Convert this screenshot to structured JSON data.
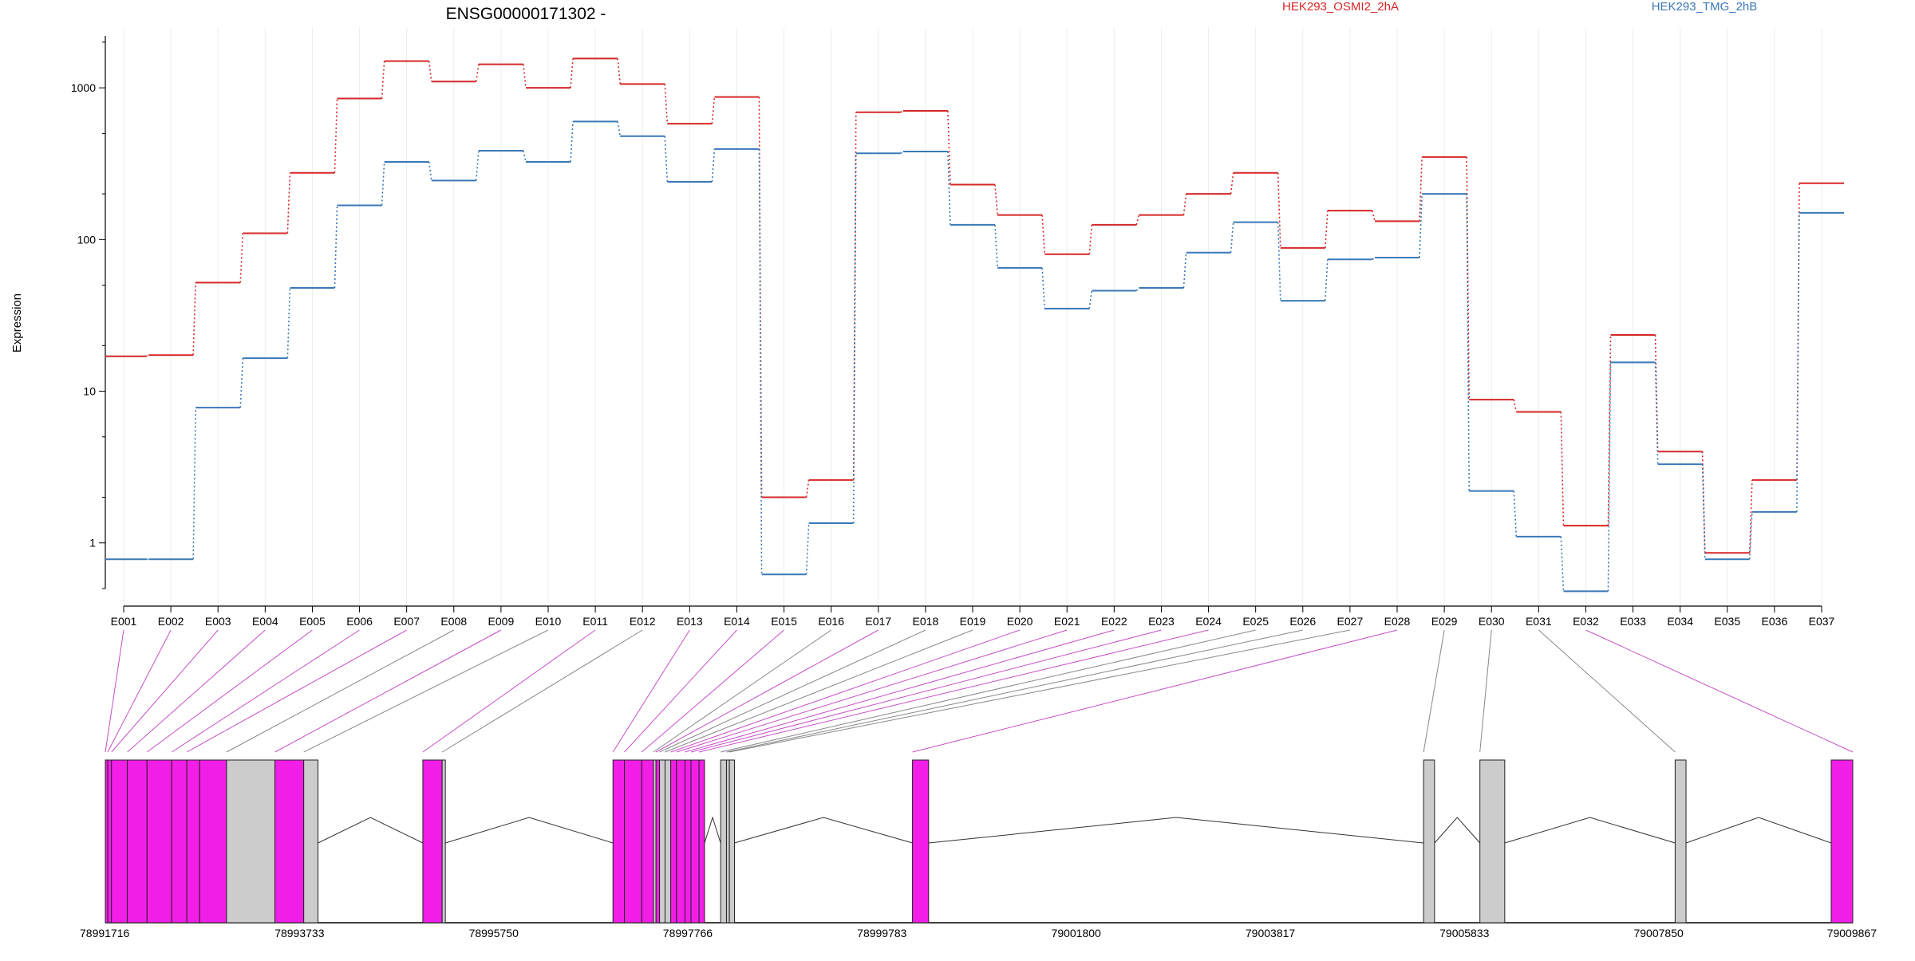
{
  "chart_data": {
    "type": "line",
    "title": "ENSG00000171302 -",
    "ylabel": "Expression",
    "xlabel": "",
    "y_scale": "log",
    "ylim": [
      0.5,
      2200
    ],
    "y_ticks": [
      1,
      10,
      100,
      1000
    ],
    "y_tick_labels": [
      "1",
      "10",
      "100",
      "1000"
    ],
    "grid": "vertical-light",
    "legend_placement": "top",
    "categories": [
      "E001",
      "E002",
      "E003",
      "E004",
      "E005",
      "E006",
      "E007",
      "E008",
      "E009",
      "E010",
      "E011",
      "E012",
      "E013",
      "E014",
      "E015",
      "E016",
      "E017",
      "E018",
      "E019",
      "E020",
      "E021",
      "E022",
      "E023",
      "E024",
      "E025",
      "E026",
      "E027",
      "E028",
      "E029",
      "E030",
      "E031",
      "E032",
      "E033",
      "E034",
      "E035",
      "E036",
      "E037"
    ],
    "series": [
      {
        "name": "HEK293_OSMI2_2hA",
        "color": "#d62728",
        "values": [
          17,
          17.3,
          52,
          110,
          275,
          850,
          1500,
          1100,
          1430,
          1000,
          1560,
          1060,
          580,
          870,
          2.0,
          2.6,
          690,
          705,
          230,
          145,
          80,
          125,
          145,
          200,
          275,
          88,
          155,
          132,
          350,
          8.8,
          7.3,
          1.3,
          23.5,
          4.0,
          0.86,
          2.6,
          235
        ]
      },
      {
        "name": "HEK293_TMG_2hB",
        "color": "#3a78b8",
        "values": [
          0.78,
          0.78,
          7.8,
          16.5,
          48,
          168,
          325,
          245,
          385,
          325,
          600,
          480,
          240,
          395,
          0.62,
          1.35,
          370,
          380,
          125,
          65,
          35,
          46,
          48,
          82,
          130,
          39.5,
          74,
          76,
          200,
          2.2,
          1.1,
          0.48,
          15.5,
          3.3,
          0.78,
          1.6,
          150
        ]
      }
    ],
    "gene_model": {
      "genomic_ticks": [
        78991716,
        78993733,
        78995750,
        78997766,
        78999783,
        79001800,
        79003817,
        79005833,
        79007850,
        79009867
      ],
      "genomic_tick_labels": [
        "78991716",
        "78993733",
        "78995750",
        "78997766",
        "78999783",
        "79001800",
        "79003817",
        "79005833",
        "79007850",
        "79009867"
      ],
      "range": [
        78991716,
        79009867
      ],
      "highlight_color": "#f21ee8",
      "plain_color": "#cccccc",
      "exons": [
        {
          "start": 78991716,
          "end": 78991741,
          "hl": true
        },
        {
          "start": 78991741,
          "end": 78991780,
          "hl": true
        },
        {
          "start": 78991780,
          "end": 78991945,
          "hl": true
        },
        {
          "start": 78991945,
          "end": 78992149,
          "hl": true
        },
        {
          "start": 78992149,
          "end": 78992406,
          "hl": true
        },
        {
          "start": 78992406,
          "end": 78992562,
          "hl": true
        },
        {
          "start": 78992562,
          "end": 78992696,
          "hl": true
        },
        {
          "start": 78992696,
          "end": 78992975,
          "hl": true
        },
        {
          "start": 78992975,
          "end": 78993478,
          "hl": false
        },
        {
          "start": 78993478,
          "end": 78993777,
          "hl": true
        },
        {
          "start": 78993777,
          "end": 78993925,
          "hl": false
        },
        {
          "start": 78995014,
          "end": 78995215,
          "hl": true
        },
        {
          "start": 78995215,
          "end": 78995248,
          "hl": false
        },
        {
          "start": 78996989,
          "end": 78997108,
          "hl": true
        },
        {
          "start": 78997108,
          "end": 78997288,
          "hl": true
        },
        {
          "start": 78997288,
          "end": 78997409,
          "hl": true
        },
        {
          "start": 78997409,
          "end": 78997436,
          "hl": false
        },
        {
          "start": 78997436,
          "end": 78997473,
          "hl": true
        },
        {
          "start": 78997473,
          "end": 78997530,
          "hl": false
        },
        {
          "start": 78997530,
          "end": 78997589,
          "hl": false
        },
        {
          "start": 78997589,
          "end": 78997649,
          "hl": true
        },
        {
          "start": 78997649,
          "end": 78997737,
          "hl": true
        },
        {
          "start": 78997737,
          "end": 78997800,
          "hl": true
        },
        {
          "start": 78997800,
          "end": 78997883,
          "hl": true
        },
        {
          "start": 78997883,
          "end": 78997940,
          "hl": true
        },
        {
          "start": 78998107,
          "end": 78998168,
          "hl": false
        },
        {
          "start": 78998168,
          "end": 78998198,
          "hl": false
        },
        {
          "start": 78998198,
          "end": 78998251,
          "hl": false
        },
        {
          "start": 79000100,
          "end": 79000268,
          "hl": true
        },
        {
          "start": 79005409,
          "end": 79005523,
          "hl": false
        },
        {
          "start": 79005994,
          "end": 79006252,
          "hl": false
        },
        {
          "start": 79008022,
          "end": 79008135,
          "hl": false
        },
        {
          "start": 79009643,
          "end": 79009867,
          "hl": true
        }
      ],
      "introns": [
        {
          "start": 78993925,
          "end": 78995014
        },
        {
          "start": 78995248,
          "end": 78996989
        },
        {
          "start": 78997940,
          "end": 78998107
        },
        {
          "start": 78998251,
          "end": 79000100
        },
        {
          "start": 79000268,
          "end": 79005409
        },
        {
          "start": 79005523,
          "end": 79005994
        },
        {
          "start": 79006252,
          "end": 79008022
        },
        {
          "start": 79008135,
          "end": 79009643
        }
      ],
      "connectors": [
        {
          "pos": 78991716,
          "hl": true
        },
        {
          "pos": 78991741,
          "hl": true
        },
        {
          "pos": 78991780,
          "hl": true
        },
        {
          "pos": 78991945,
          "hl": true
        },
        {
          "pos": 78992149,
          "hl": true
        },
        {
          "pos": 78992406,
          "hl": true
        },
        {
          "pos": 78992562,
          "hl": true
        },
        {
          "pos": 78992975,
          "hl": false
        },
        {
          "pos": 78993478,
          "hl": true
        },
        {
          "pos": 78993777,
          "hl": false
        },
        {
          "pos": 78995014,
          "hl": true
        },
        {
          "pos": 78995215,
          "hl": false
        },
        {
          "pos": 78996989,
          "hl": true
        },
        {
          "pos": 78997108,
          "hl": true
        },
        {
          "pos": 78997288,
          "hl": true
        },
        {
          "pos": 78997409,
          "hl": false
        },
        {
          "pos": 78997436,
          "hl": true
        },
        {
          "pos": 78997473,
          "hl": false
        },
        {
          "pos": 78997530,
          "hl": false
        },
        {
          "pos": 78997589,
          "hl": true
        },
        {
          "pos": 78997649,
          "hl": true
        },
        {
          "pos": 78997737,
          "hl": true
        },
        {
          "pos": 78997800,
          "hl": true
        },
        {
          "pos": 78997883,
          "hl": true
        },
        {
          "pos": 78998107,
          "hl": false
        },
        {
          "pos": 78998168,
          "hl": false
        },
        {
          "pos": 78998198,
          "hl": false
        },
        {
          "pos": 79000100,
          "hl": true
        },
        {
          "pos": 79005409,
          "hl": false
        },
        {
          "pos": 79005994,
          "hl": false
        },
        {
          "pos": 79008022,
          "hl": false
        },
        {
          "pos": 79009867,
          "hl": true
        }
      ]
    }
  }
}
